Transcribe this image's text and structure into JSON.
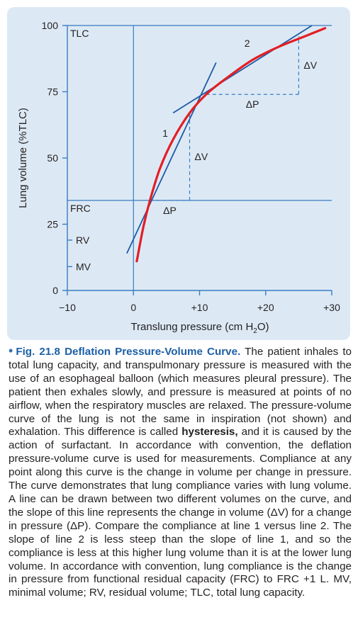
{
  "chart_data": {
    "type": "line",
    "xlabel": "Translung pressure (cm H",
    "xlabel_sub": "2",
    "xlabel_end": "O)",
    "ylabel": "Lung volume (%TLC)",
    "xlim": [
      -10,
      30
    ],
    "ylim": [
      0,
      100
    ],
    "x_ticks": [
      {
        "value": -10,
        "label": "−10"
      },
      {
        "value": 0,
        "label": "0"
      },
      {
        "value": 10,
        "label": "+10"
      },
      {
        "value": 20,
        "label": "+20"
      },
      {
        "value": 30,
        "label": "+30"
      }
    ],
    "y_ticks": [
      {
        "value": 0,
        "label": "0"
      },
      {
        "value": 25,
        "label": "25"
      },
      {
        "value": 50,
        "label": "50"
      },
      {
        "value": 75,
        "label": "75"
      },
      {
        "value": 100,
        "label": "100"
      }
    ],
    "series": [
      {
        "color": "#e31e24",
        "x": [
          0.5,
          1.5,
          2.5,
          4,
          6,
          8.5,
          11,
          14,
          18,
          22,
          26,
          29
        ],
        "y": [
          11,
          24,
          34,
          46,
          57,
          67,
          74,
          80,
          87,
          92,
          96,
          99
        ]
      }
    ],
    "tangent_lines": [
      {
        "label": "1",
        "color": "#1f5aa6",
        "x": [
          -1,
          12.5
        ],
        "y": [
          14,
          86
        ]
      },
      {
        "label": "2",
        "color": "#1f5aa6",
        "x": [
          6,
          27
        ],
        "y": [
          67,
          100
        ]
      }
    ],
    "reference_lines": [
      {
        "label": "TLC",
        "y": 100
      },
      {
        "label": "FRC",
        "y": 34
      }
    ],
    "volume_markers": [
      {
        "label": "RV",
        "y": 19
      },
      {
        "label": "MV",
        "y": 9
      }
    ],
    "delta_annotations": [
      {
        "dp_label": "ΔP",
        "dv_label": "ΔV",
        "x": [
          2.5,
          8.5
        ],
        "y": [
          34,
          67
        ]
      },
      {
        "dp_label": "ΔP",
        "dv_label": "ΔV",
        "x": [
          11,
          25
        ],
        "y": [
          74,
          96
        ]
      }
    ]
  },
  "caption": {
    "fig_label": "Fig. 21.8",
    "lead": " Deflation Pressure-Volume Curve.",
    "part1": " The patient inhales to total lung capacity, and transpulmonary pressure is measured with the use of an esophageal balloon (which measures pleural pressure). The patient then exhales slowly, and pressure is measured at points of no airflow, when the respiratory muscles are relaxed. The pressure-volume curve of the lung is not the same in inspiration (not shown) and exhalation. This difference is called ",
    "bold_term": "hysteresis,",
    "part2": " and it is caused by the action of surfactant. In accordance with convention, the deflation pressure-volume curve is used for measurements. Compliance at any point along this curve is the change in volume per change in pressure. The curve demonstrates that lung compliance varies with lung volume. A line can be drawn between two different volumes on the curve, and the slope of this line represents the change in volume (ΔV) for a change in pressure (ΔP). Compare the compliance at line 1 versus line 2. The slope of line 2 is less steep than the slope of line 1, and so the compliance is less at this higher lung volume than it is at the lower lung volume. In accordance with convention, lung compliance is the change in pressure from functional residual capacity (FRC) to FRC +1 L. MV, minimal volume; RV, residual volume; TLC, total lung capacity."
  }
}
